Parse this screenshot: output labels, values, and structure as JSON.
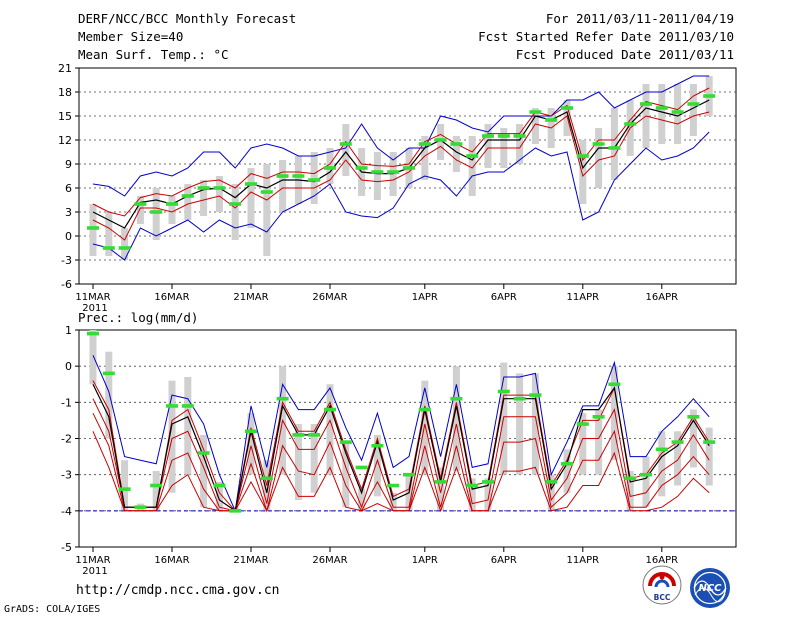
{
  "header": {
    "title": "DERF/NCC/BCC Monthly Forecast",
    "member_size": "Member Size=40",
    "variable": "Mean Surf. Temp.: °C",
    "period": "For 2011/03/11-2011/04/19",
    "started": "Fcst Started Refer Date 2011/03/10",
    "produced": "Fcst Produced Date 2011/03/11"
  },
  "footer": {
    "url": "http://cmdp.ncc.cma.gov.cn",
    "grads": "GrADS: COLA/IGES",
    "logo_bcc": "BCC",
    "logo_ncc": "NCC"
  },
  "colors": {
    "envelope": "#0000cc",
    "spread": "#cc0000",
    "mean": "#000000",
    "boxes": "#d0d0d0",
    "member_median": "#33dd33",
    "floor_line": "#0000cc"
  },
  "chart_data": [
    {
      "type": "line",
      "title": "Mean Surf. Temp.: °C",
      "xlabel": "",
      "ylabel": "°C",
      "ylim": [
        -6,
        21
      ],
      "yticks": [
        -6,
        -3,
        0,
        3,
        6,
        9,
        12,
        15,
        18,
        21
      ],
      "x_day_range": [
        0,
        39
      ],
      "xticks": [
        {
          "day": 0,
          "label": "11MAR"
        },
        {
          "day": 5,
          "label": "16MAR"
        },
        {
          "day": 10,
          "label": "21MAR"
        },
        {
          "day": 15,
          "label": "26MAR"
        },
        {
          "day": 21,
          "label": "1APR"
        },
        {
          "day": 26,
          "label": "6APR"
        },
        {
          "day": 31,
          "label": "11APR"
        },
        {
          "day": 36,
          "label": "16APR"
        }
      ],
      "year_label": "2011",
      "series": [
        {
          "name": "max",
          "role": "envelope",
          "values": [
            6.5,
            6.2,
            5,
            7.5,
            8,
            7.5,
            8.5,
            10.5,
            10.5,
            8.5,
            11,
            11.5,
            11,
            10,
            10,
            10.5,
            11,
            14,
            11,
            9.5,
            11,
            11,
            15,
            14.5,
            13.5,
            13,
            15,
            15,
            15,
            15,
            17,
            17,
            18,
            16,
            17,
            18,
            18,
            19,
            20,
            20
          ]
        },
        {
          "name": "p_high",
          "role": "spread",
          "values": [
            4,
            3,
            2.5,
            4.8,
            5.3,
            5,
            6,
            6.8,
            7,
            6,
            7.8,
            7.2,
            8,
            8,
            7.8,
            9,
            11.8,
            9,
            8.8,
            8.7,
            9,
            11.8,
            12.7,
            11.5,
            10.5,
            12.8,
            12.8,
            12.8,
            15.5,
            15,
            16.3,
            9.5,
            12,
            12,
            14.5,
            16.8,
            16.3,
            15.8,
            17.5,
            18.5
          ]
        },
        {
          "name": "mean",
          "role": "mean",
          "values": [
            3,
            2,
            1,
            4.2,
            4.5,
            4,
            5,
            5.8,
            6,
            4.8,
            6.5,
            6,
            7,
            7,
            6.8,
            8,
            10.5,
            8,
            7.8,
            7.8,
            8.5,
            11,
            12,
            10.5,
            9.5,
            12,
            12,
            12,
            15,
            14.5,
            15.5,
            8.5,
            11,
            11,
            14,
            16,
            15.5,
            15,
            16,
            17
          ]
        },
        {
          "name": "p_low",
          "role": "spread",
          "values": [
            2,
            1,
            -0.5,
            3.5,
            3.5,
            3,
            4,
            4.5,
            5,
            3.5,
            5.5,
            4.5,
            6,
            6,
            6,
            7,
            9.5,
            7,
            6.8,
            7,
            8,
            10,
            11.2,
            9.5,
            8.5,
            11,
            11,
            11,
            14,
            13.5,
            15,
            7.5,
            9.5,
            10,
            13.5,
            15,
            14.5,
            14,
            15,
            15.5
          ]
        },
        {
          "name": "min",
          "role": "envelope",
          "values": [
            -1,
            -1.5,
            -3,
            1,
            0,
            1,
            2,
            0.5,
            2,
            1,
            1.5,
            0.5,
            3,
            4,
            5,
            6.5,
            3,
            2.5,
            2.3,
            3.5,
            6.5,
            7.5,
            7,
            5,
            7.5,
            8,
            8,
            9.5,
            11,
            10,
            10.5,
            2,
            3,
            7,
            9,
            11,
            9.5,
            10,
            11,
            13
          ]
        }
      ],
      "boxes": [
        [
          -2.5,
          4
        ],
        [
          -2.5,
          3
        ],
        [
          -3,
          1
        ],
        [
          1.5,
          5
        ],
        [
          -0.5,
          6
        ],
        [
          1.5,
          5
        ],
        [
          2,
          6.5
        ],
        [
          2.5,
          7
        ],
        [
          3,
          7.5
        ],
        [
          -0.5,
          6.5
        ],
        [
          1,
          8.5
        ],
        [
          -2.5,
          9
        ],
        [
          3,
          9.5
        ],
        [
          4,
          10
        ],
        [
          4,
          10.5
        ],
        [
          6.5,
          11
        ],
        [
          7.5,
          14
        ],
        [
          5,
          11
        ],
        [
          4.5,
          10.5
        ],
        [
          5,
          10.5
        ],
        [
          6,
          11
        ],
        [
          7,
          12.5
        ],
        [
          9.5,
          14
        ],
        [
          8,
          12.5
        ],
        [
          5,
          12.5
        ],
        [
          8.5,
          14
        ],
        [
          8.5,
          13.5
        ],
        [
          9,
          14
        ],
        [
          11.5,
          16
        ],
        [
          11,
          16
        ],
        [
          12.5,
          17
        ],
        [
          4,
          12
        ],
        [
          6,
          13.5
        ],
        [
          7,
          16
        ],
        [
          10,
          17
        ],
        [
          11,
          19
        ],
        [
          11.5,
          19
        ],
        [
          11.5,
          19
        ],
        [
          12.5,
          19
        ],
        [
          15,
          20
        ]
      ],
      "member_marks": [
        1,
        -1.5,
        -1.5,
        4,
        3,
        4,
        5,
        6,
        6,
        4,
        6.5,
        5.5,
        7.5,
        7.5,
        7,
        8.5,
        11.5,
        8.5,
        8,
        8,
        8.5,
        11.5,
        12,
        11.5,
        10,
        12.5,
        12.5,
        12.5,
        15.5,
        14.5,
        16,
        10,
        11.5,
        11,
        14,
        16.5,
        16,
        15.5,
        16.5,
        17.5
      ]
    },
    {
      "type": "line",
      "title": "Prec.: log(mm/d)",
      "xlabel": "",
      "ylabel": "log(mm/d)",
      "ylim": [
        -5,
        1
      ],
      "yticks": [
        -5,
        -4,
        -3,
        -2,
        -1,
        0,
        1
      ],
      "x_day_range": [
        0,
        39
      ],
      "xticks": [
        {
          "day": 0,
          "label": "11MAR"
        },
        {
          "day": 5,
          "label": "16MAR"
        },
        {
          "day": 10,
          "label": "21MAR"
        },
        {
          "day": 15,
          "label": "26MAR"
        },
        {
          "day": 21,
          "label": "1APR"
        },
        {
          "day": 26,
          "label": "6APR"
        },
        {
          "day": 31,
          "label": "11APR"
        },
        {
          "day": 36,
          "label": "16APR"
        }
      ],
      "year_label": "2011",
      "floor": -4,
      "series": [
        {
          "name": "max",
          "role": "envelope",
          "values": [
            0.3,
            -0.7,
            -2.5,
            -2.6,
            -2.7,
            -0.8,
            -0.9,
            -1.6,
            -3,
            -4,
            -1.1,
            -2.8,
            -0.5,
            -1.2,
            -1.2,
            -0.6,
            -1.7,
            -2.6,
            -1.3,
            -2.8,
            -2.5,
            -0.6,
            -2.5,
            -0.5,
            -2.8,
            -2.7,
            -0.3,
            -0.3,
            -0.2,
            -3,
            -2.1,
            -1.1,
            -1.1,
            0.1,
            -2.5,
            -2.5,
            -1.8,
            -1.4,
            -0.9,
            -1.4
          ]
        },
        {
          "name": "p_high",
          "role": "spread",
          "values": [
            -0.4,
            -1.2,
            -3.9,
            -3.9,
            -3.9,
            -1.5,
            -1.2,
            -2.3,
            -3.5,
            -4,
            -1.7,
            -3.3,
            -1,
            -1.8,
            -1.8,
            -1,
            -2.3,
            -3.4,
            -2,
            -3.6,
            -3.4,
            -1.1,
            -3.1,
            -1,
            -3.3,
            -3.2,
            -0.8,
            -0.8,
            -0.8,
            -3.3,
            -2.6,
            -1.5,
            -1.5,
            -0.6,
            -3.1,
            -3,
            -2.4,
            -2.1,
            -1.4,
            -2.1
          ]
        },
        {
          "name": "p_low1",
          "role": "spread",
          "values": [
            -0.9,
            -1.8,
            -3.9,
            -3.9,
            -3.9,
            -2,
            -1.8,
            -2.8,
            -3.9,
            -4,
            -2.2,
            -3.8,
            -1.5,
            -2.3,
            -2.3,
            -1.5,
            -2.8,
            -3.9,
            -2.6,
            -3.9,
            -3.9,
            -1.6,
            -3.5,
            -1.6,
            -3.8,
            -3.7,
            -1.4,
            -1.4,
            -1.4,
            -3.7,
            -3.1,
            -2,
            -2,
            -1.2,
            -3.6,
            -3.5,
            -2.9,
            -2.6,
            -1.9,
            -2.6
          ]
        },
        {
          "name": "p_low2",
          "role": "spread",
          "values": [
            -1.3,
            -2.2,
            -4,
            -4,
            -4,
            -2.6,
            -2.4,
            -3.4,
            -4,
            -4,
            -2.7,
            -4,
            -2.2,
            -2.9,
            -3,
            -2.1,
            -3.3,
            -4,
            -3.2,
            -4,
            -4,
            -2.2,
            -3.9,
            -2.2,
            -4,
            -4,
            -2.1,
            -2.1,
            -2,
            -3.9,
            -3.5,
            -2.6,
            -2.6,
            -1.8,
            -3.9,
            -3.9,
            -3.3,
            -3,
            -2.5,
            -3
          ]
        },
        {
          "name": "p_min",
          "role": "spread",
          "values": [
            -1.8,
            -2.8,
            -4,
            -4,
            -4,
            -3.3,
            -3,
            -3.9,
            -4,
            -4,
            -3.2,
            -4,
            -2.8,
            -3.6,
            -3.6,
            -2.8,
            -3.9,
            -4,
            -3.8,
            -4,
            -4,
            -2.8,
            -4,
            -2.8,
            -4,
            -4,
            -2.9,
            -2.9,
            -2.8,
            -4,
            -3.9,
            -3.3,
            -3.3,
            -2.4,
            -4,
            -4,
            -3.9,
            -3.6,
            -3.1,
            -3.5
          ]
        },
        {
          "name": "mean",
          "role": "mean",
          "values": [
            -0.5,
            -1.4,
            -3.9,
            -3.9,
            -3.9,
            -1.6,
            -1.4,
            -2.5,
            -3.7,
            -4,
            -1.8,
            -3.5,
            -1.1,
            -1.9,
            -1.9,
            -1.1,
            -2.4,
            -3.5,
            -2.1,
            -3.7,
            -3.5,
            -1.2,
            -3.2,
            -1.1,
            -3.4,
            -3.3,
            -0.9,
            -0.9,
            -0.9,
            -3.4,
            -2.7,
            -1.2,
            -1.2,
            -0.6,
            -3.2,
            -3.1,
            -2.5,
            -2.2,
            -1.5,
            -2.2
          ]
        }
      ],
      "boxes": [
        [
          -0.5,
          1
        ],
        [
          -2,
          0.4
        ],
        [
          -4,
          -2.6
        ],
        [
          -4,
          -3.8
        ],
        [
          -4,
          -2.9
        ],
        [
          -3.5,
          -0.4
        ],
        [
          -3,
          -0.3
        ],
        [
          -3.9,
          -1.9
        ],
        [
          -4,
          -3.2
        ],
        [
          -4,
          -3.9
        ],
        [
          -3,
          -1.3
        ],
        [
          -4,
          -2.6
        ],
        [
          -3,
          0
        ],
        [
          -3.7,
          -1.6
        ],
        [
          -3.5,
          -1.6
        ],
        [
          -3,
          -0.5
        ],
        [
          -3.9,
          -2.1
        ],
        [
          -4,
          -3.4
        ],
        [
          -3.6,
          -1.9
        ],
        [
          -4,
          -3.5
        ],
        [
          -4,
          -3
        ],
        [
          -3,
          -0.4
        ],
        [
          -4,
          -2.8
        ],
        [
          -2.9,
          0
        ],
        [
          -4,
          -3.1
        ],
        [
          -4,
          -3.1
        ],
        [
          -3,
          0.1
        ],
        [
          -3,
          -0.2
        ],
        [
          -3,
          -0.2
        ],
        [
          -4,
          -3
        ],
        [
          -3.5,
          -2.3
        ],
        [
          -3,
          -1.3
        ],
        [
          -3,
          -1.2
        ],
        [
          -2.6,
          0
        ],
        [
          -4,
          -2.9
        ],
        [
          -3.9,
          -2.5
        ],
        [
          -3.6,
          -1.8
        ],
        [
          -3.3,
          -1.8
        ],
        [
          -2.8,
          -1.2
        ],
        [
          -3.3,
          -1.7
        ]
      ],
      "member_marks": [
        0.9,
        -0.2,
        -3.4,
        -3.9,
        -3.3,
        -1.1,
        -1.1,
        -2.4,
        -3.3,
        -4,
        -1.8,
        -3.1,
        -0.9,
        -1.9,
        -1.9,
        -1.2,
        -2.1,
        -2.8,
        -2.2,
        -3.3,
        -3,
        -1.2,
        -3.2,
        -0.9,
        -3.3,
        -3.2,
        -0.7,
        -0.9,
        -0.8,
        -3.2,
        -2.7,
        -1.6,
        -1.4,
        -0.5,
        -3.1,
        -3,
        -2.3,
        -2.1,
        -1.4,
        -2.1
      ]
    }
  ]
}
